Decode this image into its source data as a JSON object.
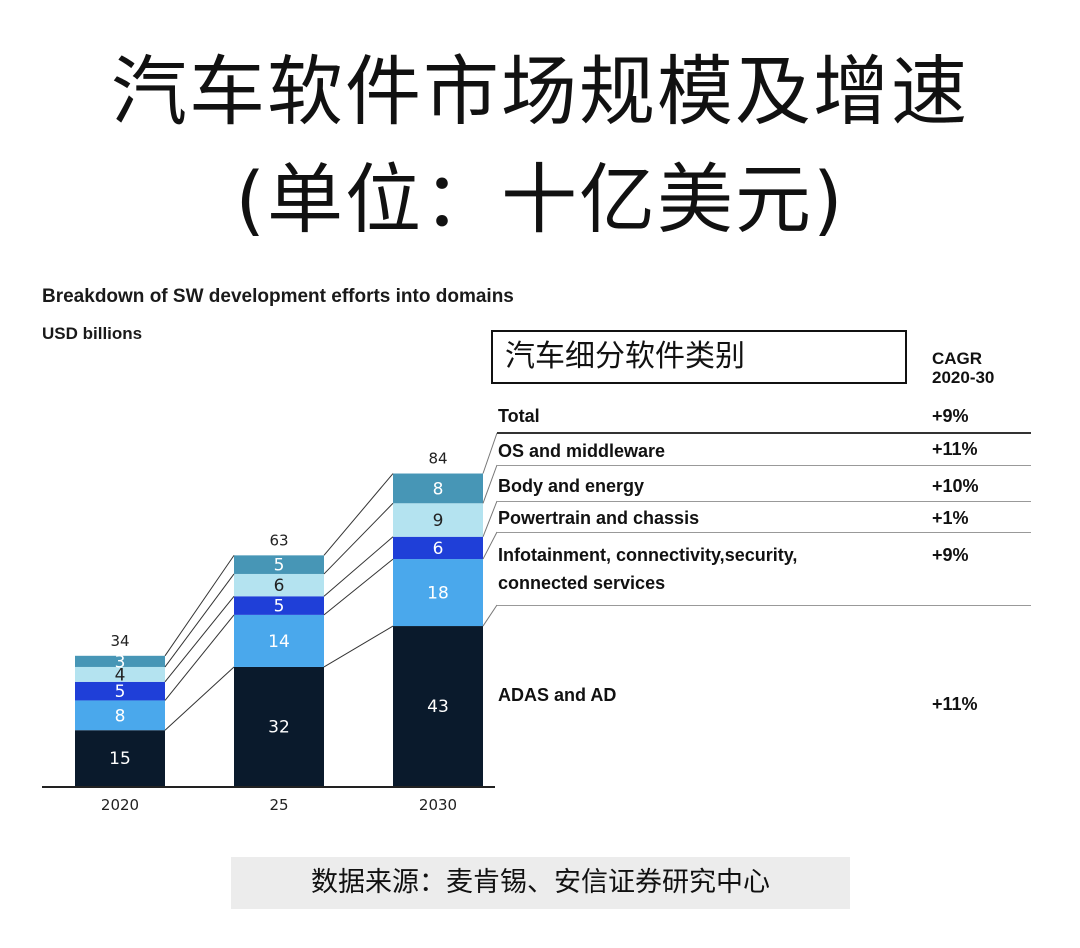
{
  "header": {
    "title_line1": "汽车软件市场规模及增速",
    "title_line2": "(单位：十亿美元)"
  },
  "chart_title": "Breakdown of SW development efforts into domains",
  "unit": "USD billions",
  "category_box": "汽车细分软件类别",
  "cagr_header": [
    "CAGR",
    "2020-30"
  ],
  "legend_rows": [
    {
      "label": "Total",
      "cagr": "+9%"
    },
    {
      "label": "OS and middleware",
      "cagr": "+11%"
    },
    {
      "label": "Body and energy",
      "cagr": "+10%"
    },
    {
      "label": "Powertrain and chassis",
      "cagr": "+1%"
    },
    {
      "label": "Infotainment, connectivity,security,",
      "label2": "connected services",
      "cagr": "+9%"
    },
    {
      "label": "ADAS and AD",
      "cagr": "+11%"
    }
  ],
  "source": "数据来源：麦肯锡、安信证券研究中心",
  "colors": {
    "adas": "#0a1a2c",
    "infotainment": "#4aa8ec",
    "powertrain": "#1f3fd8",
    "body": "#b4e3f0",
    "os": "#4796b6"
  },
  "chart_data": {
    "type": "bar",
    "stacked": true,
    "categories": [
      "2020",
      "25",
      "2030"
    ],
    "totals": [
      34,
      63,
      84
    ],
    "series": [
      {
        "name": "ADAS and AD",
        "values": [
          15,
          32,
          43
        ],
        "color": "#0a1a2c",
        "cagr": "+11%"
      },
      {
        "name": "Infotainment, connectivity,security, connected services",
        "values": [
          8,
          14,
          18
        ],
        "color": "#4aa8ec",
        "cagr": "+9%"
      },
      {
        "name": "Powertrain and chassis",
        "values": [
          5,
          5,
          6
        ],
        "color": "#1f3fd8",
        "cagr": "+1%"
      },
      {
        "name": "Body and energy",
        "values": [
          4,
          6,
          9
        ],
        "color": "#b4e3f0",
        "cagr": "+10%"
      },
      {
        "name": "OS and middleware",
        "values": [
          3,
          5,
          8
        ],
        "color": "#4796b6",
        "cagr": "+11%"
      }
    ],
    "title": "Breakdown of SW development efforts into domains",
    "ylabel": "USD billions",
    "ylim": [
      0,
      84
    ],
    "grid": false,
    "legend": "right"
  }
}
